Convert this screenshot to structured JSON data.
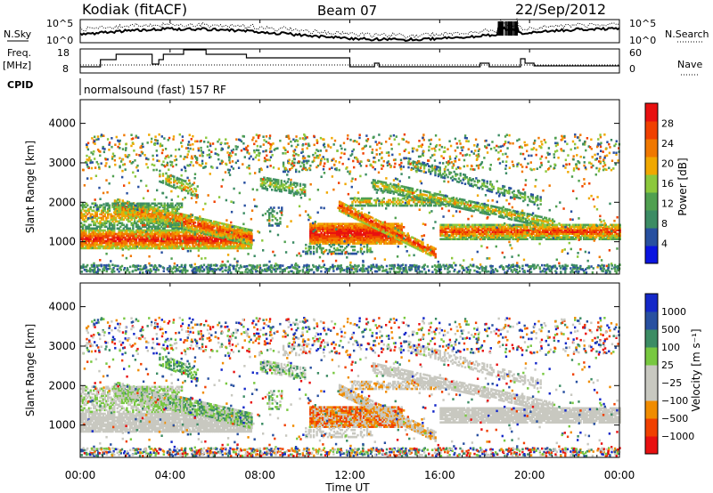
{
  "header": {
    "radar": "Kodiak (fitACF)",
    "beam": "Beam 07",
    "date": "22/Sep/2012"
  },
  "noise_panel": {
    "left_label": "N.Sky",
    "right_label": "N.Search",
    "left_ticks": [
      "10^5",
      "10^0"
    ],
    "right_ticks": [
      "10^5",
      "10^0"
    ]
  },
  "freq_panel": {
    "left_label_line1": "Freq.",
    "left_label_line2": "[MHz]",
    "left_ticks": [
      "18",
      "8"
    ],
    "right_label": "Nave",
    "right_ticks": [
      "60",
      "0"
    ]
  },
  "cpid": {
    "label": "CPID",
    "value": "normalsound (fast) 157 RF"
  },
  "colors": {
    "power": [
      "#0a14e0",
      "#2850a0",
      "#3c8c64",
      "#50a050",
      "#8cc83c",
      "#f0a800",
      "#f07800",
      "#f04000",
      "#e81010"
    ],
    "velocity": [
      "#e81010",
      "#f04000",
      "#f08c00",
      "#c8c8c0",
      "#c8c8c0",
      "#78c840",
      "#3c8c64",
      "#2850a0",
      "#1428c8"
    ]
  },
  "chart_data": [
    {
      "type": "heatmap",
      "panel": "power",
      "ylabel": "Slant Range [km]",
      "ylim": [
        180,
        4600
      ],
      "yticks": [
        "1000",
        "2000",
        "3000",
        "4000"
      ],
      "xlim": [
        0,
        24
      ],
      "colorbar": {
        "label": "Power [dB]",
        "ticks": [
          "4",
          "8",
          "12",
          "16",
          "20",
          "24",
          "28"
        ],
        "range": [
          0,
          32
        ]
      }
    },
    {
      "type": "heatmap",
      "panel": "velocity",
      "ylabel": "Slant Range [km]",
      "ylim": [
        180,
        4600
      ],
      "yticks": [
        "1000",
        "2000",
        "3000",
        "4000"
      ],
      "xlim": [
        0,
        24
      ],
      "xlabel": "Time UT",
      "xticks": [
        "00:00",
        "04:00",
        "08:00",
        "12:00",
        "16:00",
        "20:00",
        "00:00"
      ],
      "colorbar": {
        "label": "Velocity [m s⁻¹]",
        "ticks": [
          "1000",
          "500",
          "100",
          "25",
          "−25",
          "−100",
          "−500",
          "−1000"
        ]
      }
    }
  ]
}
